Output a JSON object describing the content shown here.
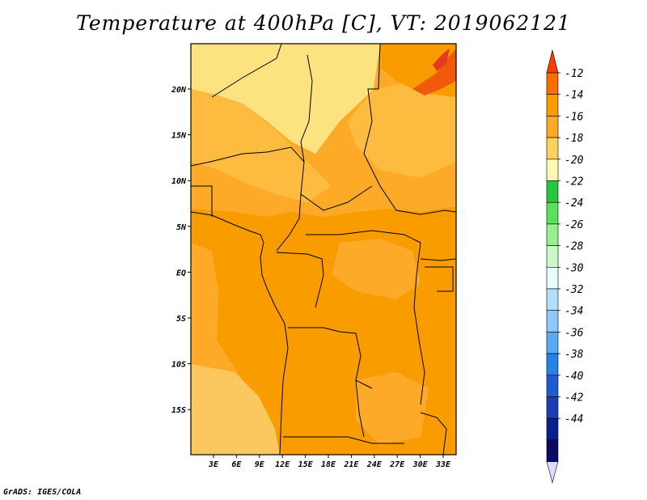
{
  "title": "Temperature at 400hPa [C], VT: 2019062121",
  "credit": "GrADS: IGES/COLA",
  "map": {
    "lat_labels": [
      "20N",
      "15N",
      "10N",
      "5N",
      "EQ",
      "5S",
      "10S",
      "15S"
    ],
    "lon_labels": [
      "3E",
      "6E",
      "9E",
      "12E",
      "15E",
      "18E",
      "21E",
      "24E",
      "27E",
      "30E",
      "33E"
    ],
    "field_colors": {
      "c_-20": "#fde280",
      "c_-18": "#fdbb40",
      "c_-16": "#fcaa28",
      "c_-14": "#f89c00",
      "c_-12": "#f05a0a",
      "c_max": "#e6391e",
      "coast_sea_cool": "#fbc860"
    }
  },
  "colorbar": {
    "labels": [
      "-12",
      "-14",
      "-16",
      "-18",
      "-20",
      "-22",
      "-24",
      "-26",
      "-28",
      "-30",
      "-32",
      "-34",
      "-36",
      "-38",
      "-40",
      "-42",
      "-44"
    ],
    "colors": [
      "#ff3c00",
      "#f86e00",
      "#f89c00",
      "#fcaa28",
      "#fdd060",
      "#fff8b4",
      "#28c83c",
      "#5ae05a",
      "#96f08c",
      "#ccf8c8",
      "#e8fcfc",
      "#b4dcfc",
      "#8cc8f8",
      "#5aaaf0",
      "#2882e6",
      "#1e5ad2",
      "#1e3cb4",
      "#0a1e8c",
      "#0a0a64",
      "#dcdcff"
    ]
  }
}
